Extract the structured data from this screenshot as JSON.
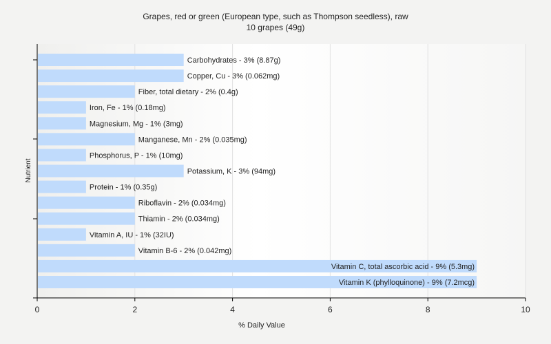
{
  "chart_data": {
    "type": "bar",
    "orientation": "horizontal",
    "title": "Grapes, red or green (European type, such as Thompson seedless), raw",
    "subtitle": "10 grapes (49g)",
    "xlabel": "% Daily Value",
    "ylabel": "Nutrient",
    "xlim": [
      0,
      10
    ],
    "xticks": [
      "0",
      "2",
      "4",
      "6",
      "8",
      "10"
    ],
    "grid": true,
    "bar_color": "#c0dbfc",
    "categories": [
      "Carbohydrates",
      "Copper, Cu",
      "Fiber, total dietary",
      "Iron, Fe",
      "Magnesium, Mg",
      "Manganese, Mn",
      "Phosphorus, P",
      "Potassium, K",
      "Protein",
      "Riboflavin",
      "Thiamin",
      "Vitamin A, IU",
      "Vitamin B-6",
      "Vitamin C, total ascorbic acid",
      "Vitamin K (phylloquinone)"
    ],
    "values": [
      3,
      3,
      2,
      1,
      1,
      2,
      1,
      3,
      1,
      2,
      2,
      1,
      2,
      9,
      9
    ],
    "labels": [
      "Carbohydrates - 3% (8.87g)",
      "Copper, Cu - 3% (0.062mg)",
      "Fiber, total dietary - 2% (0.4g)",
      "Iron, Fe - 1% (0.18mg)",
      "Magnesium, Mg - 1% (3mg)",
      "Manganese, Mn - 2% (0.035mg)",
      "Phosphorus, P - 1% (10mg)",
      "Potassium, K - 3% (94mg)",
      "Protein - 1% (0.35g)",
      "Riboflavin - 2% (0.034mg)",
      "Thiamin - 2% (0.034mg)",
      "Vitamin A, IU - 1% (32IU)",
      "Vitamin B-6 - 2% (0.042mg)",
      "Vitamin C, total ascorbic acid - 9% (5.3mg)",
      "Vitamin K (phylloquinone) - 9% (7.2mcg)"
    ]
  }
}
